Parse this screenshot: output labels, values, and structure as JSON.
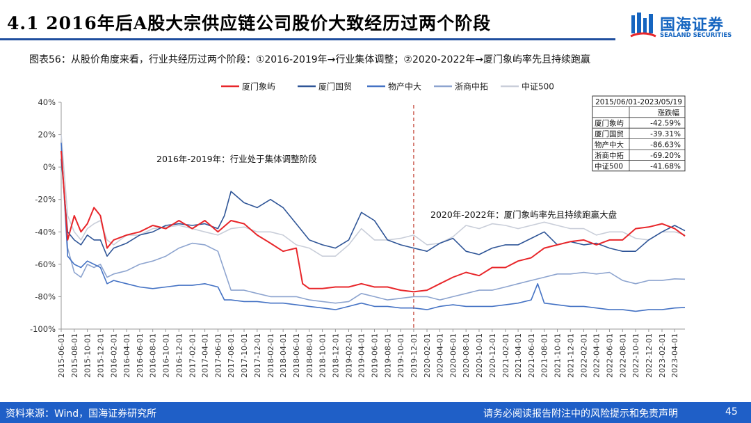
{
  "header": {
    "title": "4.1 2016年后A股大宗供应链公司股价大致经历过两个阶段",
    "logo_cn": "国海证券",
    "logo_en": "SEALAND SECURITIES"
  },
  "figure_caption": "图表56：从股价角度来看，行业共经历过两个阶段：①2016-2019年→行业集体调整；②2020-2022年→厦门象屿率先且持续跑赢",
  "footer": {
    "source": "资料来源：Wind，国海证券研究所",
    "disclaimer": "请务必阅读报告附注中的风险提示和免责声明",
    "page": "45"
  },
  "chart_data": {
    "type": "line",
    "y_ticks": [
      "40%",
      "20%",
      "0%",
      "-20%",
      "-40%",
      "-60%",
      "-80%",
      "-100%"
    ],
    "ylim": [
      -100,
      40
    ],
    "x_ticks": [
      "2015-06-01",
      "2015-08-01",
      "2015-10-01",
      "2015-12-01",
      "2016-02-01",
      "2016-04-01",
      "2016-06-01",
      "2016-08-01",
      "2016-10-01",
      "2016-12-01",
      "2017-02-01",
      "2017-04-01",
      "2017-06-01",
      "2017-08-01",
      "2017-10-01",
      "2017-12-01",
      "2018-02-01",
      "2018-04-01",
      "2018-06-01",
      "2018-08-01",
      "2018-10-01",
      "2018-12-01",
      "2019-02-01",
      "2019-04-01",
      "2019-06-01",
      "2019-08-01",
      "2019-10-01",
      "2019-12-01",
      "2020-02-01",
      "2020-04-01",
      "2020-06-01",
      "2020-08-01",
      "2020-10-01",
      "2020-12-01",
      "2021-02-01",
      "2021-04-01",
      "2021-06-01",
      "2021-08-01",
      "2021-10-01",
      "2021-12-01",
      "2022-02-01",
      "2022-04-01",
      "2022-06-01",
      "2022-08-01",
      "2022-10-01",
      "2022-12-01",
      "2023-02-01",
      "2023-04-01"
    ],
    "divider_x": "2019-12-01",
    "annotations": [
      "2016年-2019年：行业处于集体调整阶段",
      "2020年-2022年：厦门象屿率先且持续跑赢大盘"
    ],
    "series": [
      {
        "name": "厦门象屿",
        "color": "#e8262a",
        "width": 2.0,
        "x": [
          "2015-06-01",
          "2015-07-01",
          "2015-08-01",
          "2015-09-01",
          "2015-10-01",
          "2015-11-01",
          "2015-12-01",
          "2016-01-01",
          "2016-02-01",
          "2016-04-01",
          "2016-06-01",
          "2016-08-01",
          "2016-10-01",
          "2016-12-01",
          "2017-02-01",
          "2017-04-01",
          "2017-06-01",
          "2017-08-01",
          "2017-10-01",
          "2017-12-01",
          "2018-02-01",
          "2018-04-01",
          "2018-06-01",
          "2018-07-01",
          "2018-08-01",
          "2018-10-01",
          "2018-12-01",
          "2019-02-01",
          "2019-04-01",
          "2019-06-01",
          "2019-08-01",
          "2019-10-01",
          "2019-12-01",
          "2020-02-01",
          "2020-04-01",
          "2020-06-01",
          "2020-08-01",
          "2020-10-01",
          "2020-12-01",
          "2021-02-01",
          "2021-04-01",
          "2021-06-01",
          "2021-08-01",
          "2021-10-01",
          "2021-12-01",
          "2022-02-01",
          "2022-04-01",
          "2022-06-01",
          "2022-08-01",
          "2022-10-01",
          "2022-12-01",
          "2023-02-01",
          "2023-04-01",
          "2023-05-19"
        ],
        "values": [
          10,
          -45,
          -30,
          -40,
          -35,
          -25,
          -30,
          -50,
          -45,
          -42,
          -40,
          -36,
          -38,
          -33,
          -38,
          -33,
          -40,
          -33,
          -35,
          -42,
          -47,
          -52,
          -50,
          -72,
          -75,
          -75,
          -74,
          -74,
          -72,
          -74,
          -74,
          -76,
          -77,
          -76,
          -72,
          -68,
          -65,
          -67,
          -62,
          -62,
          -58,
          -56,
          -50,
          -48,
          -46,
          -45,
          -48,
          -45,
          -45,
          -38,
          -37,
          -35,
          -38,
          -42.59
        ]
      },
      {
        "name": "厦门国贸",
        "color": "#2f5597",
        "width": 1.6,
        "x": [
          "2015-06-01",
          "2015-07-01",
          "2015-08-01",
          "2015-09-01",
          "2015-10-01",
          "2015-11-01",
          "2015-12-01",
          "2016-01-01",
          "2016-02-01",
          "2016-04-01",
          "2016-06-01",
          "2016-08-01",
          "2016-10-01",
          "2016-12-01",
          "2017-02-01",
          "2017-04-01",
          "2017-06-01",
          "2017-07-01",
          "2017-08-01",
          "2017-10-01",
          "2017-12-01",
          "2018-02-01",
          "2018-04-01",
          "2018-06-01",
          "2018-08-01",
          "2018-10-01",
          "2018-12-01",
          "2019-02-01",
          "2019-04-01",
          "2019-06-01",
          "2019-08-01",
          "2019-10-01",
          "2019-12-01",
          "2020-02-01",
          "2020-04-01",
          "2020-06-01",
          "2020-08-01",
          "2020-10-01",
          "2020-12-01",
          "2021-02-01",
          "2021-04-01",
          "2021-06-01",
          "2021-08-01",
          "2021-10-01",
          "2021-12-01",
          "2022-02-01",
          "2022-04-01",
          "2022-06-01",
          "2022-08-01",
          "2022-10-01",
          "2022-12-01",
          "2023-02-01",
          "2023-04-01",
          "2023-05-19"
        ],
        "values": [
          5,
          -40,
          -45,
          -48,
          -42,
          -45,
          -45,
          -55,
          -50,
          -47,
          -42,
          -40,
          -36,
          -35,
          -36,
          -35,
          -38,
          -30,
          -15,
          -22,
          -25,
          -20,
          -25,
          -35,
          -45,
          -48,
          -50,
          -45,
          -28,
          -33,
          -45,
          -48,
          -50,
          -52,
          -47,
          -44,
          -52,
          -54,
          -50,
          -48,
          -48,
          -44,
          -40,
          -48,
          -46,
          -48,
          -47,
          -50,
          -52,
          -52,
          -45,
          -40,
          -36,
          -39.31
        ]
      },
      {
        "name": "物产中大",
        "color": "#4472c4",
        "width": 1.6,
        "x": [
          "2015-06-01",
          "2015-07-01",
          "2015-08-01",
          "2015-09-01",
          "2015-10-01",
          "2015-11-01",
          "2015-12-01",
          "2016-01-01",
          "2016-02-01",
          "2016-04-01",
          "2016-06-01",
          "2016-08-01",
          "2016-10-01",
          "2016-12-01",
          "2017-02-01",
          "2017-04-01",
          "2017-06-01",
          "2017-07-01",
          "2017-08-01",
          "2017-10-01",
          "2017-12-01",
          "2018-02-01",
          "2018-04-01",
          "2018-06-01",
          "2018-08-01",
          "2018-10-01",
          "2018-12-01",
          "2019-02-01",
          "2019-04-01",
          "2019-06-01",
          "2019-08-01",
          "2019-10-01",
          "2019-12-01",
          "2020-02-01",
          "2020-04-01",
          "2020-06-01",
          "2020-08-01",
          "2020-10-01",
          "2020-12-01",
          "2021-02-01",
          "2021-04-01",
          "2021-06-01",
          "2021-07-01",
          "2021-08-01",
          "2021-10-01",
          "2021-12-01",
          "2022-02-01",
          "2022-04-01",
          "2022-06-01",
          "2022-08-01",
          "2022-10-01",
          "2022-12-01",
          "2023-02-01",
          "2023-04-01",
          "2023-05-19"
        ],
        "values": [
          15,
          -55,
          -60,
          -62,
          -58,
          -60,
          -62,
          -72,
          -70,
          -72,
          -74,
          -75,
          -74,
          -73,
          -73,
          -72,
          -74,
          -82,
          -82,
          -83,
          -83,
          -84,
          -84,
          -85,
          -86,
          -87,
          -88,
          -86,
          -84,
          -86,
          -86,
          -87,
          -87,
          -88,
          -86,
          -85,
          -86,
          -86,
          -86,
          -85,
          -84,
          -82,
          -72,
          -84,
          -85,
          -86,
          -86,
          -87,
          -88,
          -88,
          -89,
          -88,
          -88,
          -87,
          -86.63
        ]
      },
      {
        "name": "浙商中拓",
        "color": "#8da4cf",
        "width": 1.6,
        "x": [
          "2015-06-01",
          "2015-07-01",
          "2015-08-01",
          "2015-09-01",
          "2015-10-01",
          "2015-11-01",
          "2015-12-01",
          "2016-01-01",
          "2016-02-01",
          "2016-04-01",
          "2016-06-01",
          "2016-08-01",
          "2016-10-01",
          "2016-12-01",
          "2017-02-01",
          "2017-04-01",
          "2017-06-01",
          "2017-08-01",
          "2017-10-01",
          "2017-12-01",
          "2018-02-01",
          "2018-04-01",
          "2018-06-01",
          "2018-08-01",
          "2018-10-01",
          "2018-12-01",
          "2019-02-01",
          "2019-04-01",
          "2019-06-01",
          "2019-08-01",
          "2019-10-01",
          "2019-12-01",
          "2020-02-01",
          "2020-04-01",
          "2020-06-01",
          "2020-08-01",
          "2020-10-01",
          "2020-12-01",
          "2021-02-01",
          "2021-04-01",
          "2021-06-01",
          "2021-08-01",
          "2021-10-01",
          "2021-12-01",
          "2022-02-01",
          "2022-04-01",
          "2022-06-01",
          "2022-08-01",
          "2022-10-01",
          "2022-12-01",
          "2023-02-01",
          "2023-04-01",
          "2023-05-19"
        ],
        "values": [
          10,
          -50,
          -65,
          -68,
          -60,
          -62,
          -60,
          -68,
          -66,
          -64,
          -60,
          -58,
          -55,
          -50,
          -47,
          -48,
          -52,
          -76,
          -76,
          -78,
          -80,
          -80,
          -80,
          -82,
          -83,
          -84,
          -83,
          -78,
          -80,
          -82,
          -81,
          -80,
          -80,
          -82,
          -80,
          -78,
          -76,
          -76,
          -74,
          -72,
          -70,
          -68,
          -66,
          -66,
          -65,
          -66,
          -65,
          -70,
          -72,
          -70,
          -70,
          -69,
          -69.2
        ]
      },
      {
        "name": "中证500",
        "color": "#c9ced9",
        "width": 1.6,
        "x": [
          "2015-06-01",
          "2015-07-01",
          "2015-08-01",
          "2015-09-01",
          "2015-10-01",
          "2015-11-01",
          "2015-12-01",
          "2016-01-01",
          "2016-02-01",
          "2016-04-01",
          "2016-06-01",
          "2016-08-01",
          "2016-10-01",
          "2016-12-01",
          "2017-02-01",
          "2017-04-01",
          "2017-06-01",
          "2017-08-01",
          "2017-10-01",
          "2017-12-01",
          "2018-02-01",
          "2018-04-01",
          "2018-06-01",
          "2018-08-01",
          "2018-10-01",
          "2018-12-01",
          "2019-02-01",
          "2019-04-01",
          "2019-06-01",
          "2019-08-01",
          "2019-10-01",
          "2019-12-01",
          "2020-02-01",
          "2020-04-01",
          "2020-06-01",
          "2020-08-01",
          "2020-10-01",
          "2020-12-01",
          "2021-02-01",
          "2021-04-01",
          "2021-06-01",
          "2021-08-01",
          "2021-10-01",
          "2021-12-01",
          "2022-02-01",
          "2022-04-01",
          "2022-06-01",
          "2022-08-01",
          "2022-10-01",
          "2022-12-01",
          "2023-02-01",
          "2023-04-01",
          "2023-05-19"
        ],
        "values": [
          20,
          -30,
          -40,
          -45,
          -38,
          -35,
          -33,
          -45,
          -48,
          -42,
          -42,
          -38,
          -37,
          -36,
          -38,
          -40,
          -42,
          -38,
          -37,
          -40,
          -40,
          -42,
          -48,
          -50,
          -55,
          -55,
          -48,
          -38,
          -45,
          -45,
          -44,
          -42,
          -48,
          -47,
          -43,
          -36,
          -38,
          -35,
          -36,
          -38,
          -36,
          -34,
          -36,
          -38,
          -38,
          -42,
          -40,
          -40,
          -44,
          -45,
          -40,
          -40,
          -41.68
        ]
      }
    ]
  },
  "returns_table": {
    "period": "2015/06/01-2023/05/19",
    "header": "涨跌幅",
    "rows": [
      {
        "name": "厦门象屿",
        "value": "-42.59%"
      },
      {
        "name": "厦门国贸",
        "value": "-39.31%"
      },
      {
        "name": "物产中大",
        "value": "-86.63%"
      },
      {
        "name": "浙商中拓",
        "value": "-69.20%"
      },
      {
        "name": "中证500",
        "value": "-41.68%"
      }
    ]
  }
}
